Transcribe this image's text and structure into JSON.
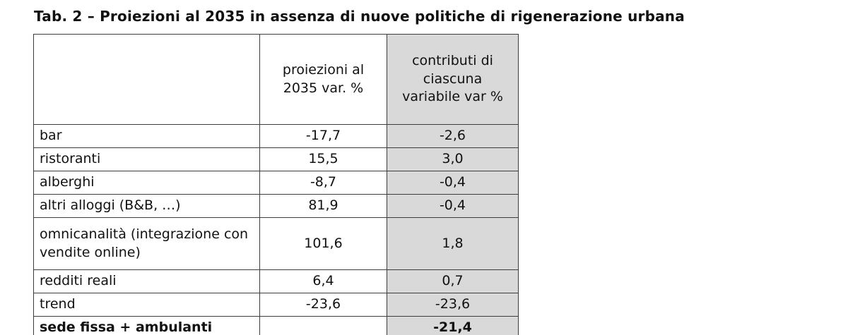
{
  "page": {
    "title": "Tab. 2 – Proiezioni al 2035 in assenza di nuove politiche di rigenerazione urbana"
  },
  "table": {
    "header": {
      "col1": "",
      "col2": "proiezioni al 2035 var. %",
      "col3": "contributi di ciascuna variabile var %"
    },
    "rows": [
      {
        "label": "bar",
        "proiezione": "-17,7",
        "contributo": "-2,6"
      },
      {
        "label": "ristoranti",
        "proiezione": "15,5",
        "contributo": "3,0"
      },
      {
        "label": "alberghi",
        "proiezione": "-8,7",
        "contributo": "-0,4"
      },
      {
        "label": "altri alloggi (B&B, …)",
        "proiezione": "81,9",
        "contributo": "-0,4"
      },
      {
        "label": "omnicanalità (integrazione con vendite online)",
        "proiezione": "101,6",
        "contributo": "1,8"
      },
      {
        "label": "redditi reali",
        "proiezione": "6,4",
        "contributo": "0,7"
      },
      {
        "label": "trend",
        "proiezione": "-23,6",
        "contributo": "-23,6"
      },
      {
        "label": "sede fissa + ambulanti",
        "proiezione": "",
        "contributo": "-21,4"
      }
    ],
    "colors": {
      "highlight_column_fill": "#d9d9d9",
      "border": "#3d3d3d",
      "text": "#111111"
    }
  }
}
